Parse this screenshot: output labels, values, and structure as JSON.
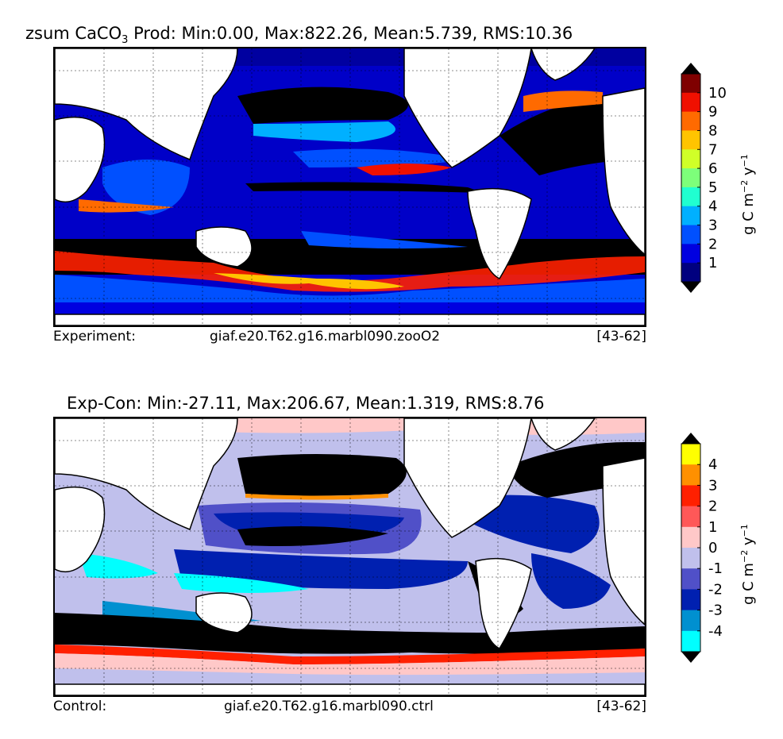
{
  "top": {
    "title_prefix": "zsum CaCO",
    "title_sub": "3",
    "title_suffix": " Prod: Min:0.00, Max:822.26, Mean:5.739, RMS:10.36",
    "foot_label": "Experiment:",
    "foot_case": "giaf.e20.T62.g16.marbl090.zooO2",
    "foot_years": "[43-62]",
    "colorbar": {
      "unit_main": "g C m",
      "unit_exp1": "−2",
      "unit_mid": " y",
      "unit_exp2": "−1",
      "ticks": [
        "1",
        "2",
        "3",
        "4",
        "5",
        "6",
        "7",
        "8",
        "9",
        "10"
      ],
      "colors": [
        "#00007f",
        "#0000e0",
        "#0050ff",
        "#00b0ff",
        "#20ffd0",
        "#7dff7a",
        "#d0ff28",
        "#ffc400",
        "#ff6a00",
        "#f01000",
        "#7f0000"
      ],
      "under_color": "#000000",
      "over_color": "#000000"
    }
  },
  "bottom": {
    "title": "Exp-Con: Min:-27.11, Max:206.67, Mean:1.319, RMS:8.76",
    "foot_label": "Control:",
    "foot_case": "giaf.e20.T62.g16.marbl090.ctrl",
    "foot_years": "[43-62]",
    "colorbar": {
      "unit_main": "g C m",
      "unit_exp1": "−2",
      "unit_mid": " y",
      "unit_exp2": "−1",
      "ticks": [
        "-4",
        "-3",
        "-2",
        "-1",
        "0",
        "1",
        "2",
        "3",
        "4"
      ],
      "colors": [
        "#00ffff",
        "#0090d0",
        "#0020b0",
        "#5050c8",
        "#c0c0ec",
        "#ffc8c8",
        "#ff5858",
        "#ff2000",
        "#ff9000",
        "#ffff00"
      ],
      "under_color": "#000000",
      "over_color": "#000000"
    }
  },
  "chart_data": [
    {
      "type": "heatmap",
      "title": "zsum CaCO3 Prod: Min:0.00, Max:822.26, Mean:5.739, RMS:10.36",
      "colorbar_label": "g C m^-2 y^-1",
      "levels": [
        1,
        2,
        3,
        4,
        5,
        6,
        7,
        8,
        9,
        10
      ],
      "stats": {
        "min": 0.0,
        "max": 822.26,
        "mean": 5.739,
        "rms": 10.36
      },
      "grid": true
    },
    {
      "type": "heatmap",
      "title": "Exp-Con: Min:-27.11, Max:206.67, Mean:1.319, RMS:8.76",
      "colorbar_label": "g C m^-2 y^-1",
      "levels": [
        -4,
        -3,
        -2,
        -1,
        0,
        1,
        2,
        3,
        4
      ],
      "stats": {
        "min": -27.11,
        "max": 206.67,
        "mean": 1.319,
        "rms": 8.76
      },
      "grid": true
    }
  ]
}
